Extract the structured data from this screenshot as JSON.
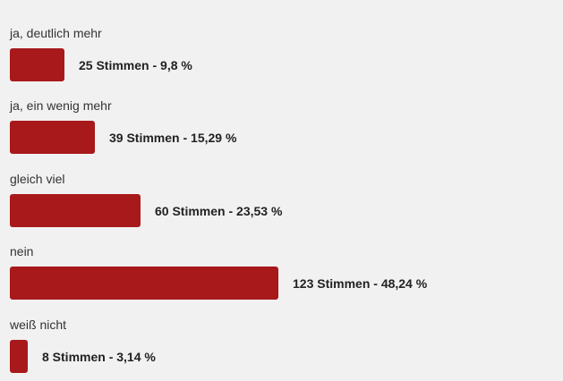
{
  "poll": {
    "bar_color": "#a8191b",
    "options": [
      {
        "label": "ja, deutlich mehr",
        "result": "25 Stimmen - 9,8 %",
        "votes": 25,
        "percent": 9.8
      },
      {
        "label": "ja, ein wenig mehr",
        "result": "39 Stimmen - 15,29 %",
        "votes": 39,
        "percent": 15.29
      },
      {
        "label": "gleich viel",
        "result": "60 Stimmen - 23,53 %",
        "votes": 60,
        "percent": 23.53
      },
      {
        "label": "nein",
        "result": "123 Stimmen - 48,24 %",
        "votes": 123,
        "percent": 48.24
      },
      {
        "label": "weiß nicht",
        "result": "8 Stimmen - 3,14 %",
        "votes": 8,
        "percent": 3.14
      }
    ]
  }
}
